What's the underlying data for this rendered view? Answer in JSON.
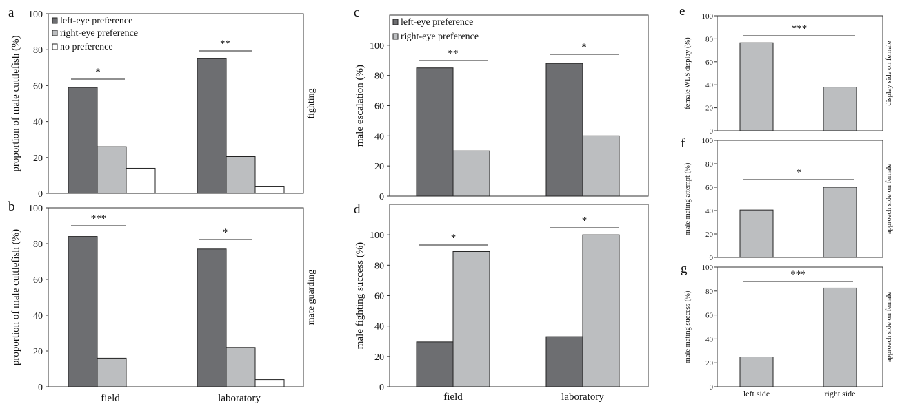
{
  "colors": {
    "left": "#6d6e71",
    "right": "#bcbec0",
    "none": "#ffffff"
  },
  "chart_data": [
    {
      "panel": "a",
      "type": "bar",
      "side_label": "fighting",
      "ylabel": "proportion of male cuttlefish (%)",
      "ylim": [
        0,
        100
      ],
      "yticks": [
        "0",
        "20",
        "40",
        "60",
        "80",
        "100"
      ],
      "categories": [
        "field",
        "laboratory"
      ],
      "show_categories": false,
      "legend": [
        "left-eye preference",
        "right-eye preference",
        "no preference"
      ],
      "series": [
        {
          "name": "left-eye preference",
          "color_key": "left",
          "values": [
            59,
            75
          ]
        },
        {
          "name": "right-eye preference",
          "color_key": "right",
          "values": [
            26,
            20.5
          ]
        },
        {
          "name": "no preference",
          "color_key": "none",
          "values": [
            14,
            4
          ]
        }
      ],
      "significance": [
        "*",
        "**"
      ]
    },
    {
      "panel": "b",
      "type": "bar",
      "side_label": "mate guarding",
      "ylabel": "proportion of male cuttlefish (%)",
      "ylim": [
        0,
        100
      ],
      "yticks": [
        "0",
        "20",
        "40",
        "60",
        "80",
        "100"
      ],
      "categories": [
        "field",
        "laboratory"
      ],
      "show_categories": true,
      "legend": [],
      "series": [
        {
          "name": "left-eye preference",
          "color_key": "left",
          "values": [
            84,
            77
          ]
        },
        {
          "name": "right-eye preference",
          "color_key": "right",
          "values": [
            16,
            22
          ]
        },
        {
          "name": "no preference",
          "color_key": "none",
          "values": [
            0,
            4
          ]
        }
      ],
      "significance": [
        "***",
        "*"
      ]
    },
    {
      "panel": "c",
      "type": "bar",
      "side_label": "",
      "ylabel": "male escalation (%)",
      "ylim": [
        0,
        120
      ],
      "yticks": [
        "0",
        "20",
        "40",
        "60",
        "80",
        "100"
      ],
      "categories": [
        "field",
        "laboratory"
      ],
      "show_categories": false,
      "legend": [
        "left-eye preference",
        "right-eye preference"
      ],
      "series": [
        {
          "name": "left-eye preference",
          "color_key": "left",
          "values": [
            85,
            88
          ]
        },
        {
          "name": "right-eye preference",
          "color_key": "right",
          "values": [
            30,
            40
          ]
        }
      ],
      "significance": [
        "**",
        "*"
      ]
    },
    {
      "panel": "d",
      "type": "bar",
      "side_label": "",
      "ylabel": "male fighting success (%)",
      "ylim": [
        0,
        120
      ],
      "yticks": [
        "0",
        "20",
        "40",
        "60",
        "80",
        "100"
      ],
      "categories": [
        "field",
        "laboratory"
      ],
      "show_categories": true,
      "legend": [],
      "series": [
        {
          "name": "left-eye preference",
          "color_key": "left",
          "values": [
            29.5,
            33
          ]
        },
        {
          "name": "right-eye preference",
          "color_key": "right",
          "values": [
            89,
            100
          ]
        }
      ],
      "significance": [
        "*",
        "*"
      ]
    },
    {
      "panel": "e",
      "type": "bar",
      "side_label": "display side on female",
      "ylabel": "female WLS display (%)",
      "ylim": [
        0,
        100
      ],
      "yticks": [
        "0",
        "20",
        "40",
        "60",
        "80",
        "100"
      ],
      "categories": [
        "left side",
        "right side"
      ],
      "show_categories": false,
      "legend": [],
      "series": [
        {
          "color_key": "right",
          "values": [
            76.5,
            38
          ]
        }
      ],
      "significance": [
        "***"
      ]
    },
    {
      "panel": "f",
      "type": "bar",
      "side_label": "approach side on female",
      "ylabel": "male mating attempt (%)",
      "ylim": [
        0,
        100
      ],
      "yticks": [
        "0",
        "20",
        "40",
        "60",
        "80",
        "100"
      ],
      "categories": [
        "left side",
        "right side"
      ],
      "show_categories": false,
      "legend": [],
      "series": [
        {
          "color_key": "right",
          "values": [
            40.5,
            60
          ]
        }
      ],
      "significance": [
        "*"
      ]
    },
    {
      "panel": "g",
      "type": "bar",
      "side_label": "approach side on female",
      "ylabel": "male mating success (%)",
      "ylim": [
        0,
        100
      ],
      "yticks": [
        "0",
        "20",
        "40",
        "60",
        "80",
        "100"
      ],
      "categories": [
        "left side",
        "right side"
      ],
      "show_categories": true,
      "legend": [],
      "series": [
        {
          "color_key": "right",
          "values": [
            25,
            82.5
          ]
        }
      ],
      "significance": [
        "***"
      ]
    }
  ]
}
